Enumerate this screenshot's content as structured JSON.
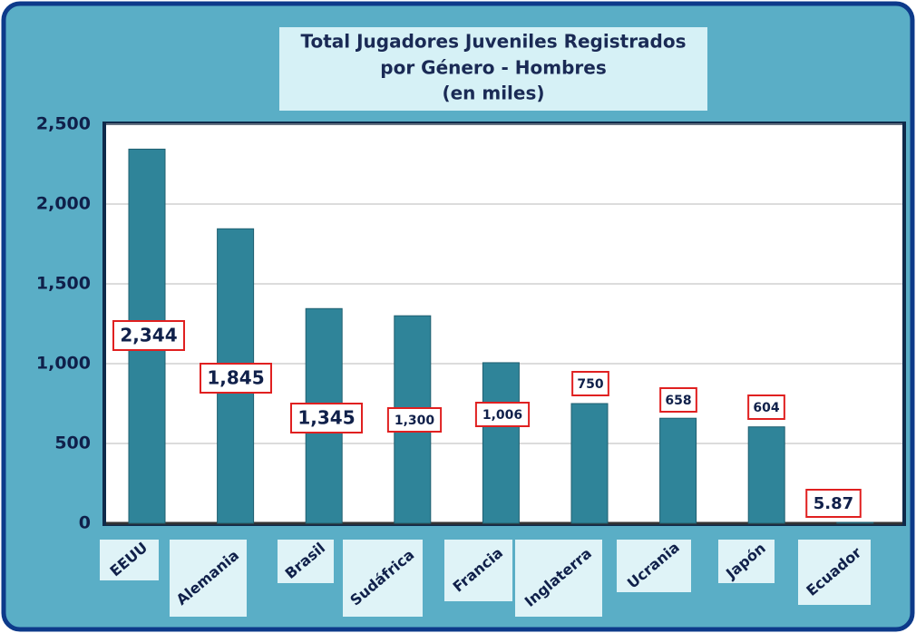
{
  "chart_data": {
    "type": "bar",
    "title": [
      "Total Jugadores Juveniles Registrados",
      "por Género  - Hombres",
      "(en miles)"
    ],
    "categories": [
      "EEUU",
      "Alemania",
      "Brasil",
      "Sudáfrica",
      "Francia",
      "Inglaterra",
      "Ucrania",
      "Japón",
      "Ecuador"
    ],
    "values": [
      2344,
      1845,
      1345,
      1300,
      1006,
      750,
      658,
      604,
      5.87
    ],
    "value_labels": [
      "2,344",
      "1,845",
      "1,345",
      "1,300",
      "1,006",
      "750",
      "658",
      "604",
      "5.87"
    ],
    "color": "#2f8499",
    "ylim": [
      0,
      2500
    ],
    "yticks": [
      0,
      500,
      {
        "value": 1000,
        "label": "1,000"
      },
      {
        "value": 1500,
        "label": "1,500"
      },
      {
        "value": 2000,
        "label": "2,000"
      },
      {
        "value": 2500,
        "label": "2,500"
      }
    ],
    "grid": true
  }
}
